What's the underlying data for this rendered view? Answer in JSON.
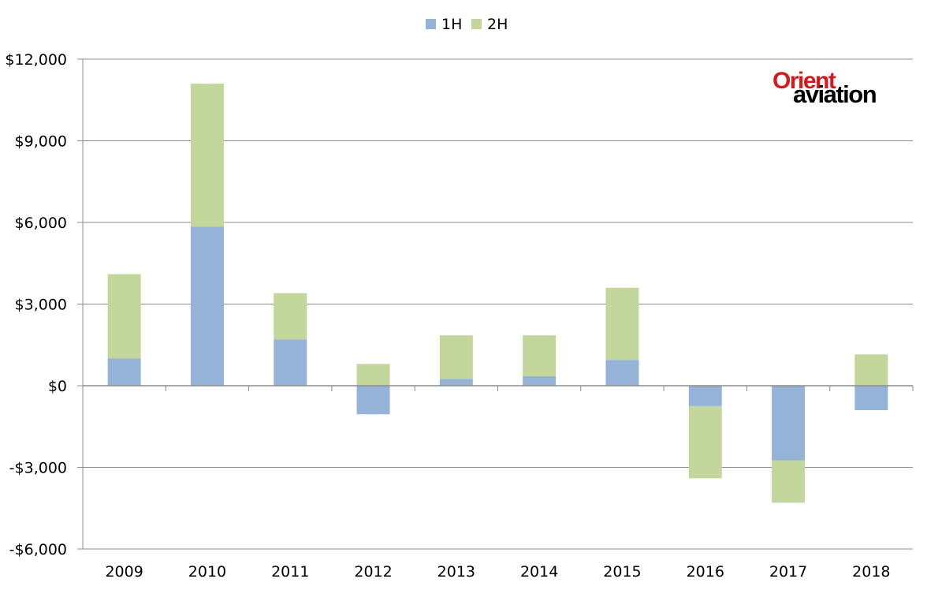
{
  "chart_data": {
    "type": "bar",
    "stacked": true,
    "categories": [
      "2009",
      "2010",
      "2011",
      "2012",
      "2013",
      "2014",
      "2015",
      "2016",
      "2017",
      "2018"
    ],
    "series": [
      {
        "name": "1H",
        "color": "#95b3d7",
        "values": [
          1000,
          5850,
          1700,
          -1050,
          250,
          350,
          950,
          -750,
          -2750,
          -900
        ]
      },
      {
        "name": "2H",
        "color": "#c3d69b",
        "values": [
          3100,
          5250,
          1700,
          800,
          1600,
          1500,
          2650,
          -2650,
          -1550,
          1150
        ]
      }
    ],
    "ylim": [
      -6000,
      12000
    ],
    "yticks": [
      -6000,
      -3000,
      0,
      3000,
      6000,
      9000,
      12000
    ],
    "ytick_labels": [
      "-$6,000",
      "-$3,000",
      "$0",
      "$3,000",
      "$6,000",
      "$9,000",
      "$12,000"
    ],
    "grid": true,
    "legend_position": "top-center",
    "title": "",
    "xlabel": "",
    "ylabel": ""
  },
  "legend": {
    "items": [
      "1H",
      "2H"
    ]
  },
  "logo": {
    "line1": "Orient",
    "line2": "aviation"
  }
}
